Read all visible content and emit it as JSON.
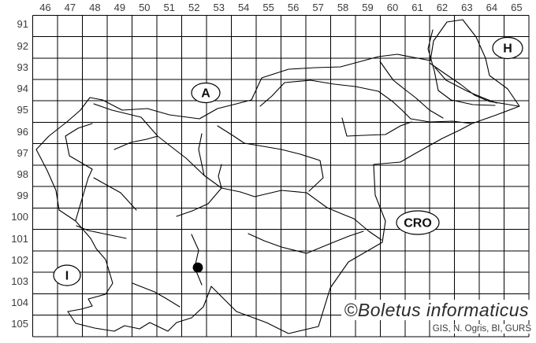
{
  "app": {
    "type": "species-distribution-map"
  },
  "map": {
    "grid": {
      "column_labels": [
        "46",
        "47",
        "48",
        "49",
        "50",
        "51",
        "52",
        "53",
        "54",
        "55",
        "56",
        "57",
        "58",
        "59",
        "60",
        "61",
        "62",
        "63",
        "64",
        "65"
      ],
      "row_labels": [
        "91",
        "92",
        "93",
        "94",
        "95",
        "96",
        "97",
        "98",
        "99",
        "100",
        "101",
        "102",
        "103",
        "104",
        "105"
      ]
    },
    "country_labels": [
      {
        "id": "austria",
        "text": "A"
      },
      {
        "id": "hungary",
        "text": "H"
      },
      {
        "id": "croatia",
        "text": "CRO"
      },
      {
        "id": "italy",
        "text": "I"
      }
    ],
    "marker": {
      "column": 52,
      "row": 102,
      "offset_x": 0.65,
      "offset_y": 0.78
    }
  },
  "watermark": {
    "text": "©Boletus informaticus"
  },
  "credits": {
    "text": "GIS, N. Ogris, BI, GURS"
  },
  "colors": {
    "line": "#000000",
    "grid": "#000000",
    "label_text": "#3c3c3c",
    "watermark_text": "#2b2b2b",
    "credits_text": "#3a3a3a",
    "background": "#ffffff",
    "marker": "#000000"
  }
}
